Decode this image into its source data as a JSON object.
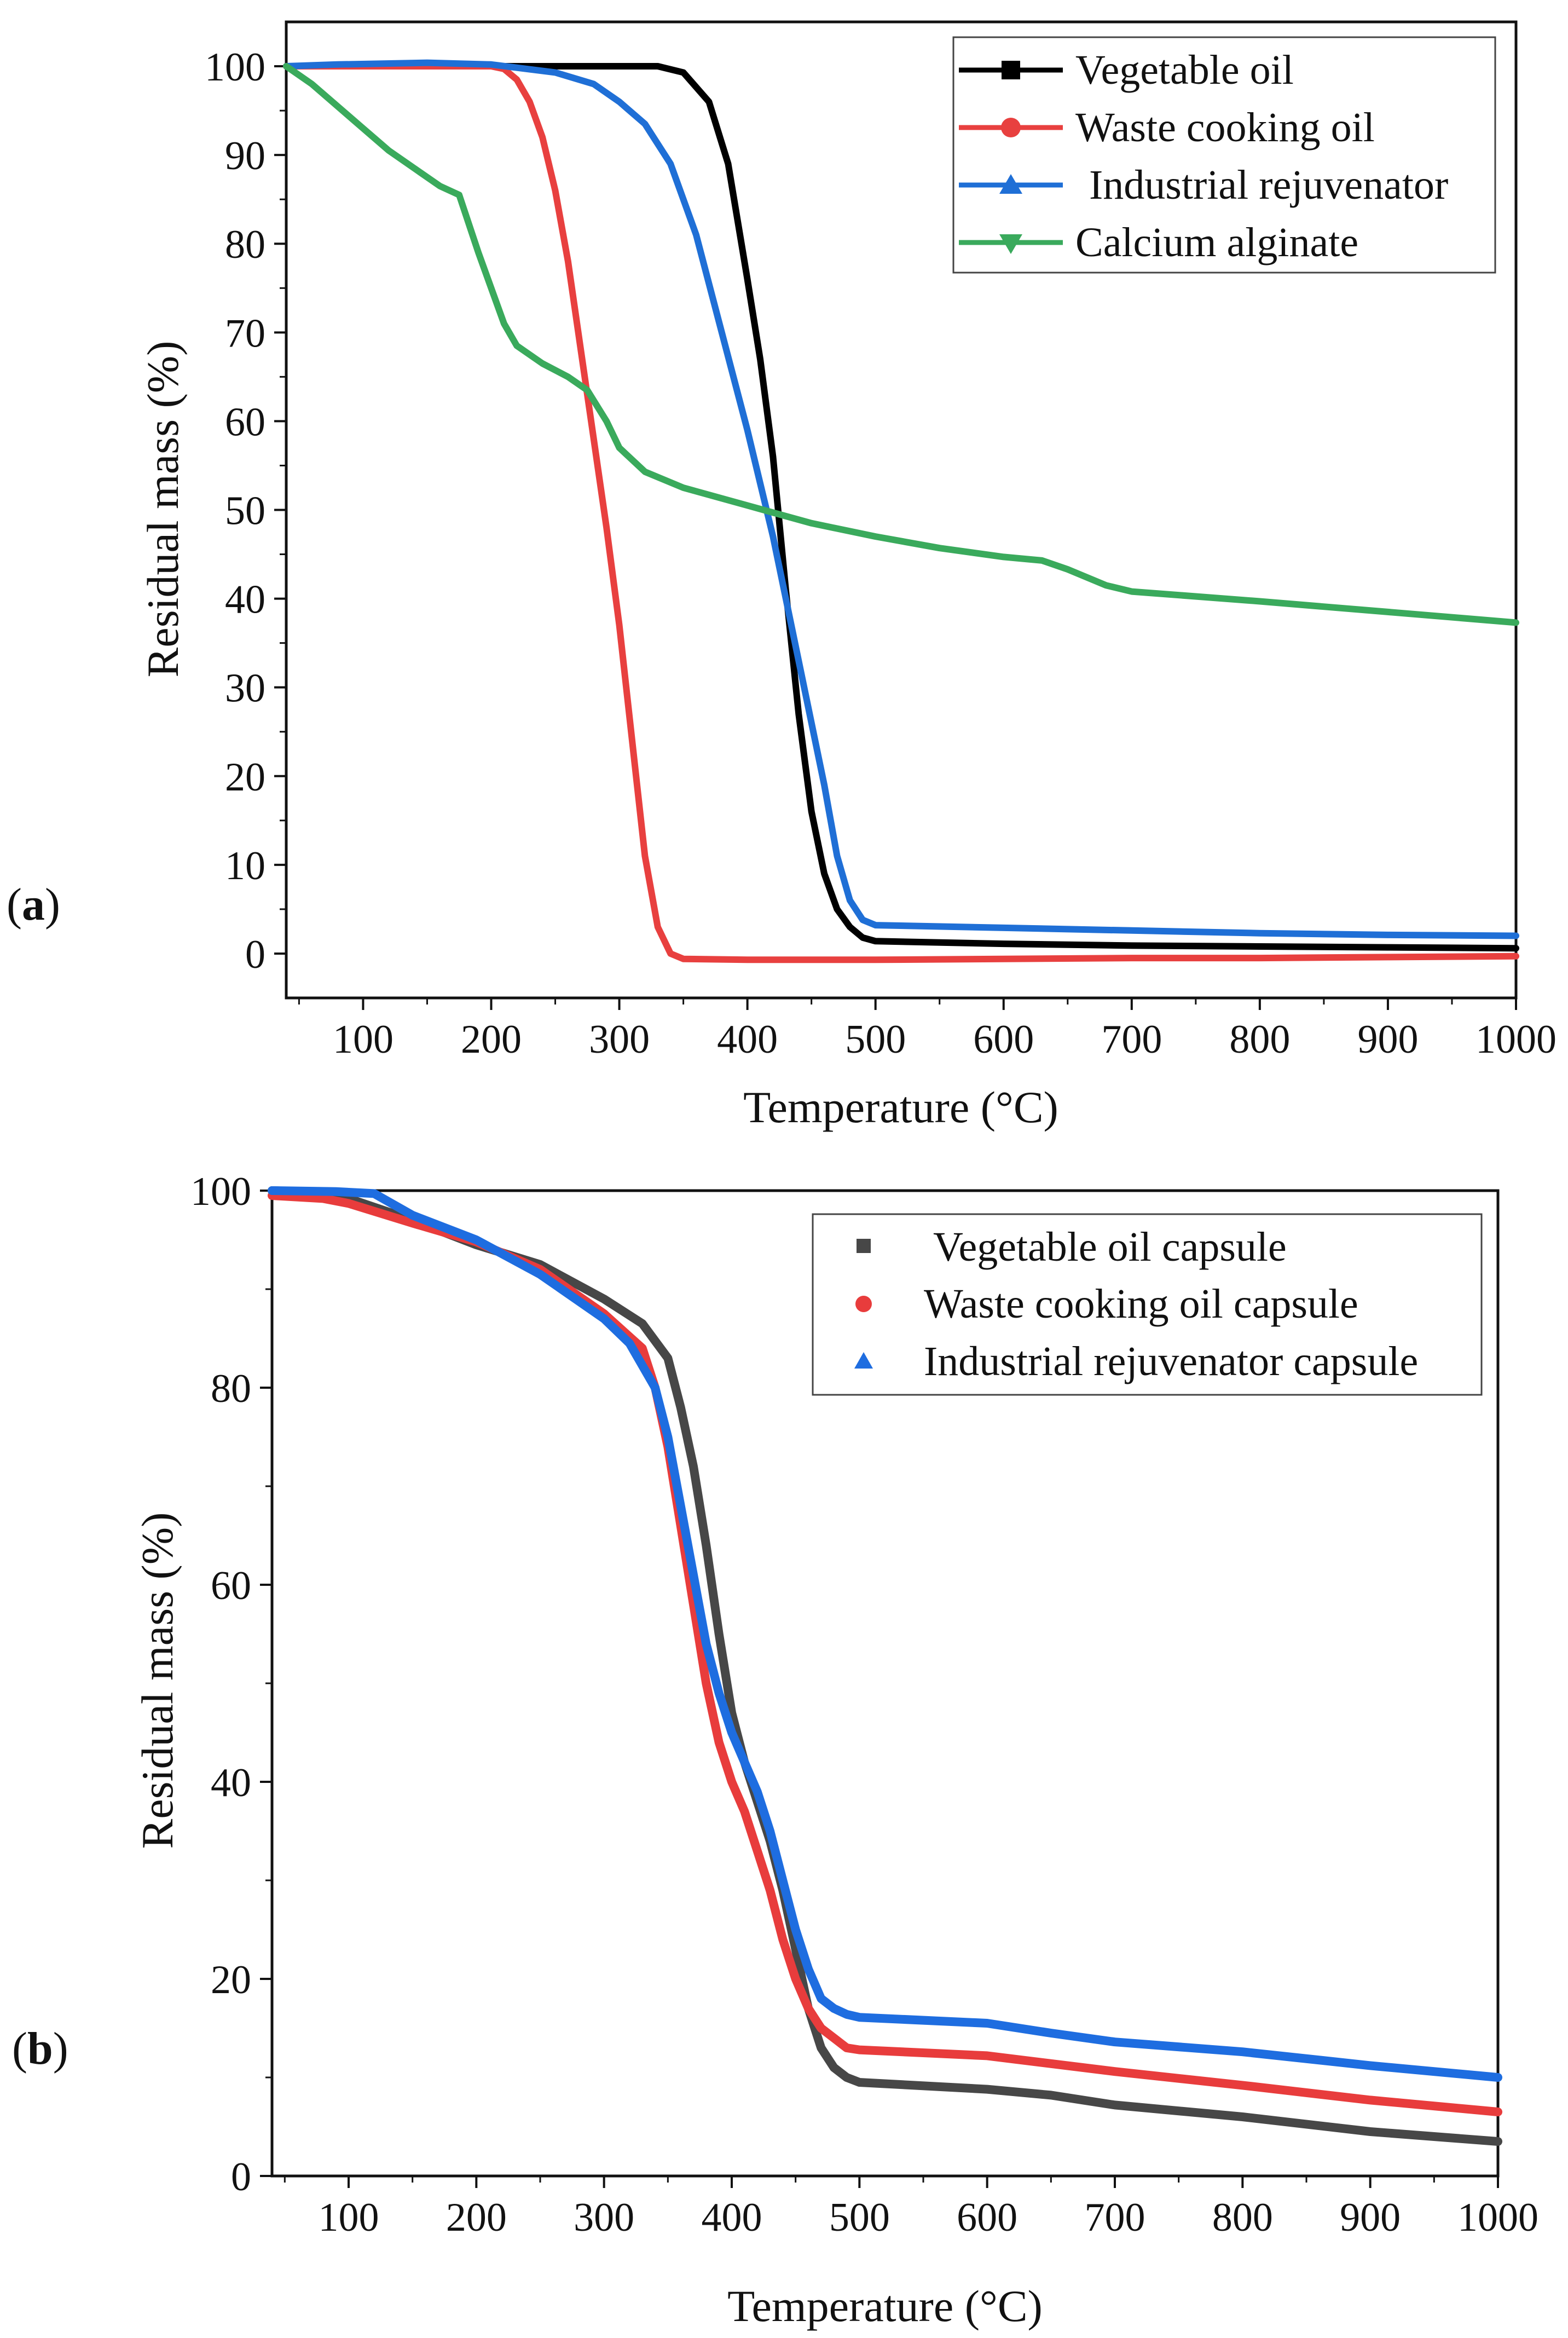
{
  "figure": {
    "panel_a_label": {
      "open": "(",
      "letter": "a",
      "close": ")"
    },
    "panel_b_label": {
      "open": "(",
      "letter": "b",
      "close": ")"
    }
  },
  "chart_data": [
    {
      "type": "line",
      "title": "",
      "xlabel": "Temperature (°C)",
      "ylabel": "Residual mass (%)",
      "xlim": [
        40,
        1000
      ],
      "ylim": [
        -5,
        105
      ],
      "xticks": [
        100,
        200,
        300,
        400,
        500,
        600,
        700,
        800,
        900,
        1000
      ],
      "yticks": [
        0,
        10,
        20,
        30,
        40,
        50,
        60,
        70,
        80,
        90,
        100
      ],
      "legend_position": "top-right",
      "grid": false,
      "series": [
        {
          "name": "Vegetable oil",
          "color": "#000000",
          "marker": "square",
          "points": [
            [
              40,
              100
            ],
            [
              100,
              100
            ],
            [
              200,
              100
            ],
            [
              300,
              100
            ],
            [
              330,
              100
            ],
            [
              350,
              99.3
            ],
            [
              370,
              96
            ],
            [
              385,
              89
            ],
            [
              400,
              76
            ],
            [
              410,
              67
            ],
            [
              420,
              56
            ],
            [
              430,
              41
            ],
            [
              440,
              27
            ],
            [
              450,
              16
            ],
            [
              460,
              9
            ],
            [
              470,
              5
            ],
            [
              480,
              3
            ],
            [
              490,
              1.8
            ],
            [
              500,
              1.4
            ],
            [
              600,
              1.1
            ],
            [
              700,
              0.9
            ],
            [
              800,
              0.8
            ],
            [
              900,
              0.7
            ],
            [
              1000,
              0.6
            ]
          ]
        },
        {
          "name": "Waste cooking oil",
          "color": "#e8403f",
          "marker": "circle",
          "points": [
            [
              40,
              100
            ],
            [
              100,
              100
            ],
            [
              200,
              100
            ],
            [
              210,
              99.7
            ],
            [
              220,
              98.5
            ],
            [
              230,
              96
            ],
            [
              240,
              92
            ],
            [
              250,
              86
            ],
            [
              260,
              78
            ],
            [
              270,
              68
            ],
            [
              280,
              58
            ],
            [
              290,
              48
            ],
            [
              300,
              37
            ],
            [
              310,
              24
            ],
            [
              320,
              11
            ],
            [
              330,
              3
            ],
            [
              340,
              0
            ],
            [
              350,
              -0.6
            ],
            [
              400,
              -0.7
            ],
            [
              500,
              -0.7
            ],
            [
              600,
              -0.6
            ],
            [
              700,
              -0.5
            ],
            [
              800,
              -0.5
            ],
            [
              900,
              -0.4
            ],
            [
              1000,
              -0.3
            ]
          ]
        },
        {
          "name": "Industrial rejuvenator",
          "color": "#1f6fd6",
          "marker": "triangle-up",
          "points": [
            [
              40,
              100
            ],
            [
              80,
              100.2
            ],
            [
              150,
              100.4
            ],
            [
              200,
              100.2
            ],
            [
              250,
              99.3
            ],
            [
              280,
              98
            ],
            [
              300,
              96
            ],
            [
              320,
              93.5
            ],
            [
              340,
              89
            ],
            [
              360,
              81
            ],
            [
              380,
              70
            ],
            [
              400,
              59
            ],
            [
              420,
              47
            ],
            [
              440,
              33
            ],
            [
              460,
              19
            ],
            [
              470,
              11
            ],
            [
              480,
              6
            ],
            [
              490,
              3.8
            ],
            [
              500,
              3.2
            ],
            [
              600,
              2.9
            ],
            [
              700,
              2.6
            ],
            [
              800,
              2.3
            ],
            [
              900,
              2.1
            ],
            [
              1000,
              2
            ]
          ]
        },
        {
          "name": "Calcium alginate",
          "color": "#3aaa5c",
          "marker": "triangle-down",
          "points": [
            [
              40,
              100
            ],
            [
              60,
              98
            ],
            [
              80,
              95.5
            ],
            [
              100,
              93
            ],
            [
              120,
              90.5
            ],
            [
              140,
              88.5
            ],
            [
              160,
              86.5
            ],
            [
              175,
              85.5
            ],
            [
              190,
              79
            ],
            [
              200,
              75
            ],
            [
              210,
              71
            ],
            [
              220,
              68.5
            ],
            [
              240,
              66.5
            ],
            [
              260,
              65
            ],
            [
              275,
              63.5
            ],
            [
              290,
              60
            ],
            [
              300,
              57
            ],
            [
              320,
              54.3
            ],
            [
              350,
              52.5
            ],
            [
              400,
              50.5
            ],
            [
              450,
              48.5
            ],
            [
              500,
              47
            ],
            [
              550,
              45.7
            ],
            [
              600,
              44.7
            ],
            [
              630,
              44.3
            ],
            [
              650,
              43.3
            ],
            [
              680,
              41.5
            ],
            [
              700,
              40.8
            ],
            [
              800,
              39.7
            ],
            [
              900,
              38.5
            ],
            [
              1000,
              37.3
            ]
          ]
        }
      ]
    },
    {
      "type": "scatter",
      "title": "",
      "xlabel": "Temperature (°C)",
      "ylabel": "Residual mass (%)",
      "xlim": [
        40,
        1000
      ],
      "ylim": [
        0,
        100
      ],
      "xticks": [
        100,
        200,
        300,
        400,
        500,
        600,
        700,
        800,
        900,
        1000
      ],
      "yticks": [
        0,
        20,
        40,
        60,
        80,
        100
      ],
      "legend_position": "top-right",
      "grid": false,
      "series": [
        {
          "name": "Vegetable oil capsule",
          "color": "#474747",
          "marker": "square",
          "points": [
            [
              40,
              100
            ],
            [
              90,
              99.8
            ],
            [
              100,
              99.2
            ],
            [
              150,
              97
            ],
            [
              200,
              94.5
            ],
            [
              250,
              92.5
            ],
            [
              300,
              89
            ],
            [
              330,
              86.5
            ],
            [
              350,
              83
            ],
            [
              360,
              78
            ],
            [
              370,
              72
            ],
            [
              380,
              64
            ],
            [
              390,
              55
            ],
            [
              400,
              47
            ],
            [
              410,
              42
            ],
            [
              420,
              38
            ],
            [
              430,
              34
            ],
            [
              440,
              29
            ],
            [
              450,
              23
            ],
            [
              460,
              17
            ],
            [
              470,
              13
            ],
            [
              480,
              11
            ],
            [
              490,
              10
            ],
            [
              500,
              9.5
            ],
            [
              600,
              8.8
            ],
            [
              650,
              8.2
            ],
            [
              700,
              7.2
            ],
            [
              800,
              6
            ],
            [
              900,
              4.5
            ],
            [
              1000,
              3.5
            ]
          ]
        },
        {
          "name": "Waste cooking oil capsule",
          "color": "#e83c3c",
          "marker": "circle",
          "points": [
            [
              40,
              99.5
            ],
            [
              80,
              99.2
            ],
            [
              100,
              98.7
            ],
            [
              150,
              96.7
            ],
            [
              200,
              94.8
            ],
            [
              250,
              92
            ],
            [
              300,
              87.5
            ],
            [
              330,
              84
            ],
            [
              340,
              80
            ],
            [
              350,
              74
            ],
            [
              360,
              66
            ],
            [
              370,
              58
            ],
            [
              380,
              50
            ],
            [
              390,
              44
            ],
            [
              400,
              40
            ],
            [
              410,
              37
            ],
            [
              420,
              33
            ],
            [
              430,
              29
            ],
            [
              440,
              24
            ],
            [
              450,
              20
            ],
            [
              460,
              17
            ],
            [
              470,
              15
            ],
            [
              480,
              14
            ],
            [
              490,
              13
            ],
            [
              500,
              12.8
            ],
            [
              600,
              12.2
            ],
            [
              650,
              11.4
            ],
            [
              700,
              10.6
            ],
            [
              800,
              9.2
            ],
            [
              900,
              7.7
            ],
            [
              1000,
              6.5
            ]
          ]
        },
        {
          "name": "Industrial rejuvenator capsule",
          "color": "#1e6de0",
          "marker": "triangle-up",
          "points": [
            [
              40,
              100
            ],
            [
              90,
              99.9
            ],
            [
              120,
              99.7
            ],
            [
              150,
              97.5
            ],
            [
              200,
              95
            ],
            [
              250,
              91.5
            ],
            [
              300,
              87
            ],
            [
              320,
              84.5
            ],
            [
              340,
              80
            ],
            [
              350,
              75
            ],
            [
              360,
              68
            ],
            [
              370,
              61
            ],
            [
              380,
              54
            ],
            [
              390,
              49
            ],
            [
              400,
              45
            ],
            [
              410,
              42
            ],
            [
              420,
              39
            ],
            [
              430,
              35
            ],
            [
              440,
              30
            ],
            [
              450,
              25
            ],
            [
              460,
              21
            ],
            [
              470,
              18
            ],
            [
              480,
              17
            ],
            [
              490,
              16.4
            ],
            [
              500,
              16.1
            ],
            [
              600,
              15.5
            ],
            [
              650,
              14.5
            ],
            [
              700,
              13.6
            ],
            [
              800,
              12.6
            ],
            [
              900,
              11.2
            ],
            [
              1000,
              10
            ]
          ]
        }
      ]
    }
  ]
}
